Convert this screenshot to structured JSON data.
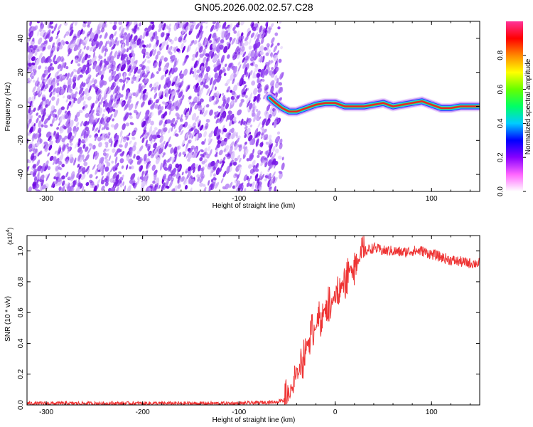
{
  "title": "GN05.2026.002.02.57.C28",
  "chart_data": [
    {
      "type": "heatmap",
      "xlabel": "Height of straight line (km)",
      "ylabel": "Frequency (Hz)",
      "xlim": [
        -320,
        150
      ],
      "ylim": [
        -50,
        50
      ],
      "x_ticks": [
        -300,
        -200,
        -100,
        0,
        100
      ],
      "y_ticks": [
        -40,
        -20,
        0,
        20,
        40
      ],
      "colorbar": {
        "label": "Normalized spectral amplitude",
        "range": [
          0,
          1
        ],
        "ticks": [
          0.0,
          0.2,
          0.4,
          0.6,
          0.8
        ],
        "stops": [
          "#ffffff",
          "#ff66ff",
          "#8800ff",
          "#0000ff",
          "#00ccff",
          "#00ff66",
          "#66ff00",
          "#ffff00",
          "#ff8800",
          "#ff0000",
          "#ff3399"
        ]
      },
      "noise_region_end_km": -60,
      "ridge": {
        "x": [
          -68,
          -62,
          -55,
          -48,
          -40,
          -30,
          -20,
          -10,
          0,
          10,
          20,
          30,
          40,
          50,
          60,
          70,
          80,
          90,
          100,
          110,
          120,
          130,
          140,
          150
        ],
        "y": [
          5,
          2,
          -1,
          -3,
          -3,
          -1,
          1,
          2,
          2,
          0,
          0,
          0,
          1,
          2,
          0,
          1,
          2,
          3,
          1,
          -1,
          -1,
          0,
          0,
          0
        ]
      }
    },
    {
      "type": "line",
      "xlabel": "Height of straight line (km)",
      "ylabel": "SNR (10 * v/v)",
      "y_multiplier": "(x10",
      "y_multiplier_exp": "4",
      "y_multiplier_close": ")",
      "xlim": [
        -320,
        150
      ],
      "ylim": [
        0,
        1.1
      ],
      "x_ticks": [
        -300,
        -200,
        -100,
        0,
        100
      ],
      "y_ticks": [
        0.0,
        0.2,
        0.4,
        0.6,
        0.8,
        1.0
      ],
      "color": "#ee3333",
      "series": [
        {
          "x": [
            -320,
            -100,
            -60,
            -48,
            -44,
            -40,
            -35,
            -30,
            -25,
            -20,
            -15,
            -10,
            -5,
            0,
            5,
            10,
            15,
            20,
            25,
            30,
            35,
            40,
            45,
            50,
            60,
            70,
            80,
            90,
            100,
            110,
            120,
            130,
            140,
            150
          ],
          "values": [
            0.01,
            0.01,
            0.02,
            0.06,
            0.12,
            0.18,
            0.28,
            0.38,
            0.45,
            0.52,
            0.57,
            0.62,
            0.66,
            0.7,
            0.76,
            0.82,
            0.87,
            0.92,
            0.96,
            0.99,
            1.01,
            1.02,
            1.01,
            1.0,
            1.0,
            0.99,
            1.0,
            1.0,
            0.98,
            0.96,
            0.94,
            0.93,
            0.92,
            0.92
          ]
        }
      ]
    }
  ]
}
